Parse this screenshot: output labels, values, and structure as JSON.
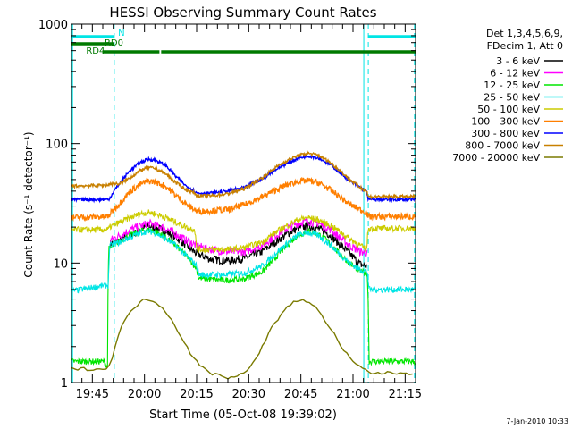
{
  "chart_data": {
    "type": "line",
    "title": "HESSI Observing Summary Count Rates",
    "xlabel": "Start Time (05-Oct-08 19:39:02)",
    "ylabel": "Count Rate (s⁻¹ detector⁻¹)",
    "yscale": "log",
    "ylim": [
      1,
      1000
    ],
    "xlim_minutes": [
      0,
      99
    ],
    "x_tick_labels": [
      "19:45",
      "20:00",
      "20:15",
      "20:30",
      "20:45",
      "21:00",
      "21:15"
    ],
    "x_tick_minutes": [
      6,
      21,
      36,
      51,
      66,
      81,
      96
    ],
    "y_tick_labels": [
      "1",
      "10",
      "100",
      "1000"
    ],
    "y_tick_values": [
      1,
      10,
      100,
      1000
    ],
    "grid": false,
    "legend_position": "right",
    "legend_header": [
      "Det 1,3,4,5,6,9,",
      "FDecim 1, Att 0"
    ],
    "footer": "7-Jan-2010 10:33",
    "flags": [
      {
        "label": "N",
        "color": "#00e5e5",
        "segments": [
          [
            0,
            12.3
          ],
          [
            85.3,
            99
          ]
        ],
        "label_at": 13.4
      },
      {
        "label": "RD0",
        "color": "#007a00",
        "segments": [
          [
            0,
            12.3
          ]
        ],
        "label_at": 9.5
      },
      {
        "label": "RD4",
        "color": "#007a00",
        "segments": [
          [
            8.9,
            25.3
          ],
          [
            25.8,
            99
          ]
        ],
        "label_at": 4.2
      }
    ],
    "night_lines": [
      {
        "minute": 0.3,
        "style": "solid"
      },
      {
        "minute": 12.3,
        "style": "dashed"
      },
      {
        "minute": 84.1,
        "style": "solid"
      },
      {
        "minute": 85.4,
        "style": "dashed"
      },
      {
        "minute": 98.7,
        "style": "dashed"
      }
    ],
    "series": [
      {
        "name": "3 - 6 keV",
        "color": "#000000",
        "x": [
          0,
          10.6,
          11.0,
          14,
          17,
          20,
          22,
          24,
          27,
          30,
          33,
          36,
          40,
          45,
          50,
          55,
          58,
          62,
          65,
          68,
          71,
          74,
          77,
          80,
          83,
          85.2
        ],
        "y": [
          null,
          null,
          14.5,
          15.5,
          17,
          19,
          20.5,
          20,
          18.5,
          16.5,
          14,
          12,
          10.8,
          10.5,
          11,
          12.5,
          14.5,
          17.5,
          19.5,
          20.5,
          19.5,
          17.5,
          14.5,
          12,
          9.8,
          9.3
        ]
      },
      {
        "name": "6 - 12 keV",
        "color": "#ff00ff",
        "x": [
          0,
          10.6,
          11.0,
          14,
          17,
          20,
          22,
          24,
          27,
          30,
          33,
          36,
          40,
          45,
          50,
          55,
          58,
          62,
          65,
          68,
          71,
          74,
          77,
          80,
          83,
          85.2
        ],
        "y": [
          null,
          null,
          15.5,
          17,
          19,
          20.5,
          21.5,
          21,
          19.5,
          17.5,
          15.5,
          14,
          13,
          12.5,
          12.5,
          14,
          16.5,
          19.5,
          21.5,
          22.5,
          21.5,
          19.5,
          16.5,
          14,
          12.5,
          12
        ]
      },
      {
        "name": "12 - 25 keV",
        "color": "#00e600",
        "x": [
          0,
          9.5,
          10.4,
          10.7,
          12,
          14,
          17,
          20,
          22,
          24,
          27,
          30,
          33,
          36,
          36.6,
          40,
          45,
          50,
          55,
          58,
          62,
          65,
          68,
          71,
          74,
          77,
          80,
          83,
          85.1,
          85.6,
          99
        ],
        "y": [
          1.5,
          1.5,
          1.3,
          13,
          14,
          15.5,
          17,
          18.5,
          19,
          18.5,
          16.5,
          14,
          11.5,
          9,
          7.5,
          7.3,
          7.2,
          7.4,
          8.5,
          10.5,
          14,
          17,
          18.5,
          17.5,
          15,
          12,
          10,
          8.5,
          8.2,
          1.5,
          1.5
        ]
      },
      {
        "name": "25 - 50 keV",
        "color": "#00e5e5",
        "x": [
          0,
          9.5,
          10.6,
          11,
          14,
          17,
          20,
          22,
          24,
          27,
          30,
          33,
          36,
          36.6,
          40,
          45,
          50,
          55,
          58,
          62,
          65,
          68,
          71,
          74,
          77,
          80,
          83,
          85.1,
          85.6,
          99
        ],
        "y": [
          5.8,
          6.5,
          6.5,
          14,
          15,
          16.5,
          18,
          18.5,
          18,
          16,
          14,
          11.5,
          9.5,
          8,
          8,
          8,
          8.3,
          9.5,
          11.5,
          14.5,
          17,
          18,
          17,
          14.5,
          12,
          10,
          8.8,
          8.5,
          6,
          6
        ]
      },
      {
        "name": "50 - 100 keV",
        "color": "#cccc00",
        "x": [
          0,
          10.6,
          11.0,
          14,
          17,
          20,
          22,
          24,
          27,
          30,
          33,
          35.5,
          36,
          40,
          45,
          50,
          55,
          58,
          62,
          65,
          68,
          71,
          74,
          77,
          80,
          83,
          84.9,
          85.4,
          99
        ],
        "y": [
          19,
          19,
          20,
          22,
          24,
          26,
          26.5,
          26,
          24,
          22,
          20,
          19,
          13,
          13,
          13,
          13.5,
          15,
          17.5,
          20.5,
          23,
          24,
          23,
          21,
          18.5,
          16,
          14,
          13,
          19.5,
          19.5
        ]
      },
      {
        "name": "100 - 300 keV",
        "color": "#ff7f00",
        "x": [
          0,
          10.6,
          11.0,
          14,
          17,
          20,
          22,
          24,
          27,
          30,
          33,
          35.5,
          36,
          40,
          45,
          50,
          55,
          58,
          62,
          65,
          68,
          71,
          74,
          77,
          80,
          83,
          84.9,
          85.4,
          99
        ],
        "y": [
          24,
          24.5,
          25.5,
          32,
          40,
          46,
          48.5,
          48,
          44,
          37,
          31,
          28,
          27,
          27.5,
          28,
          31,
          36,
          40,
          45,
          48,
          49,
          47,
          42,
          36,
          31,
          28,
          26.5,
          24.5,
          24.5
        ]
      },
      {
        "name": "300 - 800 keV",
        "color": "#0000ff",
        "x": [
          0,
          10.6,
          11.0,
          14,
          17,
          20,
          22,
          24,
          27,
          30,
          33,
          35.5,
          36,
          40,
          45,
          50,
          55,
          58,
          62,
          65,
          68,
          71,
          74,
          77,
          80,
          83,
          84.9,
          85.4,
          99
        ],
        "y": [
          34,
          34,
          35,
          47,
          60,
          70,
          74,
          73,
          66,
          53,
          44,
          40,
          38.5,
          38.5,
          40,
          43,
          51,
          59,
          68,
          75,
          79,
          76,
          68,
          58,
          49,
          43,
          40,
          34,
          34
        ]
      },
      {
        "name": "800 - 7000 keV",
        "color": "#c88000",
        "x": [
          0,
          10.6,
          11.0,
          14,
          17,
          20,
          22,
          24,
          27,
          30,
          33,
          35.5,
          36,
          40,
          45,
          50,
          55,
          58,
          62,
          65,
          68,
          71,
          74,
          77,
          80,
          83,
          84.9,
          85.4,
          99
        ],
        "y": [
          44,
          45,
          46,
          46,
          52,
          60,
          63,
          62,
          56,
          47,
          41,
          38.5,
          36.5,
          36.5,
          38,
          42,
          52,
          61,
          72,
          79,
          83,
          80,
          71,
          60,
          50,
          43,
          40,
          36,
          36
        ]
      },
      {
        "name": "7000 - 20000 keV",
        "color": "#7a7a00",
        "x": [
          0,
          10.5,
          11.5,
          13,
          14.5,
          16,
          18,
          20,
          22,
          24,
          26,
          28,
          30,
          32,
          34,
          36,
          38,
          40,
          45,
          50,
          52,
          54,
          56,
          58,
          60,
          62,
          64,
          66,
          68,
          70,
          72,
          74,
          76,
          78,
          80,
          82,
          84,
          86,
          99
        ],
        "y": [
          1.3,
          1.3,
          1.5,
          2.3,
          3.0,
          3.5,
          4.2,
          4.8,
          5.0,
          4.8,
          4.3,
          3.6,
          2.9,
          2.3,
          1.8,
          1.5,
          1.3,
          1.2,
          1.1,
          1.2,
          1.4,
          1.8,
          2.3,
          3.0,
          3.6,
          4.2,
          4.7,
          5.0,
          4.8,
          4.3,
          3.6,
          3.0,
          2.4,
          1.9,
          1.6,
          1.4,
          1.3,
          1.2,
          1.2
        ]
      }
    ]
  }
}
